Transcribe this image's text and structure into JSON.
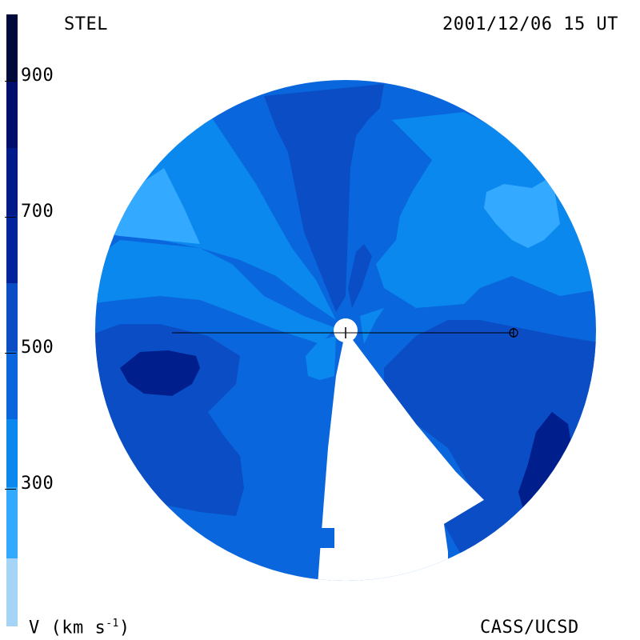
{
  "header": {
    "left_label": "STEL",
    "right_label": "2001/12/06 15 UT"
  },
  "footer": {
    "left_label": "V (km s",
    "left_label_exp": "-1",
    "left_label_close": ")",
    "right_label": "CASS/UCSD"
  },
  "colorbar": {
    "ticks": [
      "900",
      "700",
      "500",
      "300"
    ],
    "colors": [
      "#a6d4f7",
      "#33aaff",
      "#0a88ee",
      "#0a66dd",
      "#0a4dc4",
      "#00229a",
      "#000d6a",
      "#000a3a"
    ]
  },
  "map_colors": {
    "level_300": "#33aaff",
    "level_400": "#0a88ee",
    "level_500": "#0a66dd",
    "level_600": "#0a4dc4",
    "level_700": "#001e8c"
  },
  "markers": {
    "sun_symbol": "sun-marker",
    "earth_symbol": "earth-marker"
  }
}
